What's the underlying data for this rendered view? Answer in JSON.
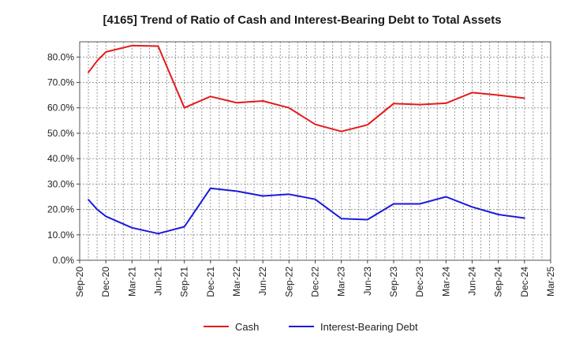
{
  "chart_data": {
    "type": "line",
    "title": "[4165]  Trend of Ratio of Cash and Interest-Bearing Debt to Total Assets",
    "xlabel": "",
    "ylabel": "",
    "ylim": [
      0,
      86
    ],
    "y_ticks": [
      0,
      10,
      20,
      30,
      40,
      50,
      60,
      70,
      80
    ],
    "y_tick_labels": [
      "0.0%",
      "10.0%",
      "20.0%",
      "30.0%",
      "40.0%",
      "50.0%",
      "60.0%",
      "70.0%",
      "80.0%"
    ],
    "x_range": [
      0,
      54
    ],
    "x_ticks": [
      0,
      3,
      6,
      9,
      12,
      15,
      18,
      21,
      24,
      27,
      30,
      33,
      36,
      39,
      42,
      45,
      48,
      51,
      54
    ],
    "x_tick_labels": [
      "Sep-20",
      "Dec-20",
      "Mar-21",
      "Jun-21",
      "Sep-21",
      "Dec-21",
      "Mar-22",
      "Jun-22",
      "Sep-22",
      "Dec-22",
      "Mar-23",
      "Jun-23",
      "Sep-23",
      "Dec-23",
      "Mar-24",
      "Jun-24",
      "Sep-24",
      "Dec-24",
      "Mar-25"
    ],
    "grid": true,
    "legend_position": "bottom",
    "series": [
      {
        "name": "Cash",
        "color": "#e31a1c",
        "x": [
          1,
          2,
          3,
          6,
          9,
          12,
          15,
          18,
          21,
          24,
          27,
          30,
          33,
          36,
          39,
          42,
          45,
          48,
          51
        ],
        "values": [
          74.0,
          78.5,
          82.0,
          84.5,
          84.3,
          60.0,
          64.5,
          62.0,
          62.7,
          60.0,
          53.5,
          50.7,
          53.3,
          61.7,
          61.3,
          61.8,
          66.0,
          65.0,
          63.8
        ]
      },
      {
        "name": "Interest-Bearing Debt",
        "color": "#1a1adc",
        "x": [
          1,
          2,
          3,
          6,
          9,
          12,
          15,
          18,
          21,
          24,
          27,
          30,
          33,
          36,
          39,
          42,
          45,
          48,
          51
        ],
        "values": [
          23.8,
          20.0,
          17.3,
          12.8,
          10.5,
          13.2,
          28.3,
          27.2,
          25.3,
          26.0,
          24.0,
          16.4,
          16.0,
          22.2,
          22.2,
          25.0,
          21.0,
          18.0,
          16.6
        ]
      }
    ]
  }
}
